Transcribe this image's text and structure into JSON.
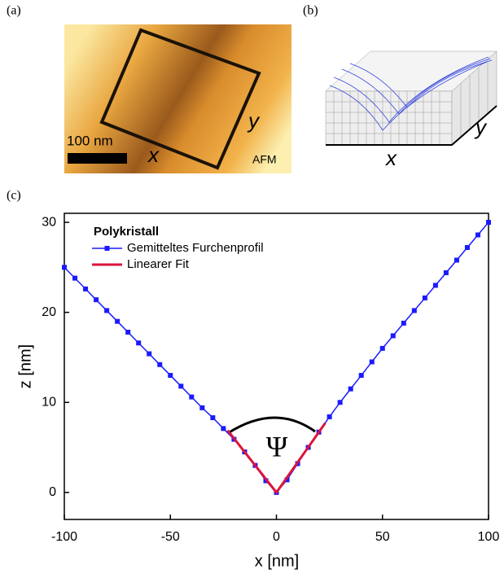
{
  "panels": {
    "a": {
      "label": "(a)",
      "scale_bar": "100 nm",
      "axis_x": "x",
      "axis_y": "y",
      "tag": "AFM"
    },
    "b": {
      "label": "(b)",
      "axis_x": "x",
      "axis_y": "y"
    },
    "c": {
      "label": "(c)"
    }
  },
  "chart_data": {
    "type": "line",
    "legend_title": "Polykristall",
    "annotation": "Ψ",
    "xlabel": "x [nm]",
    "ylabel": "z [nm]",
    "x": [
      -100,
      -95,
      -90,
      -85,
      -80,
      -75,
      -70,
      -65,
      -60,
      -55,
      -50,
      -45,
      -40,
      -35,
      -30,
      -25,
      -20,
      -15,
      -10,
      -5,
      0,
      5,
      10,
      15,
      20,
      25,
      30,
      35,
      40,
      45,
      50,
      55,
      60,
      65,
      70,
      75,
      80,
      85,
      90,
      95,
      100
    ],
    "series": [
      {
        "name": "Gemitteltes Furchenprofil",
        "color": "#1a1aff",
        "values": [
          25,
          23.8,
          22.6,
          21.4,
          20.2,
          19.0,
          17.8,
          16.6,
          15.4,
          14.2,
          13.0,
          11.8,
          10.6,
          9.4,
          8.3,
          7.1,
          5.9,
          4.5,
          3.0,
          1.3,
          0,
          1.4,
          3.2,
          5.0,
          6.7,
          8.4,
          10.0,
          11.5,
          13.0,
          14.5,
          16.0,
          17.4,
          18.8,
          20.2,
          21.6,
          23.0,
          24.4,
          25.8,
          27.2,
          28.6,
          30.0
        ]
      },
      {
        "name": "Linearer Fit",
        "color": "#dc143c",
        "x": [
          -23,
          0,
          23
        ],
        "values": [
          6.9,
          0,
          7.7
        ]
      }
    ],
    "xlim": [
      -100,
      100
    ],
    "ylim": [
      -3,
      31
    ],
    "xticks": [
      -100,
      -50,
      0,
      50,
      100
    ],
    "yticks": [
      0,
      10,
      20,
      30
    ]
  }
}
